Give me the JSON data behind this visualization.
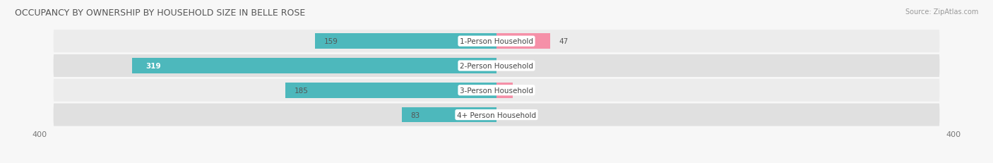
{
  "title": "OCCUPANCY BY OWNERSHIP BY HOUSEHOLD SIZE IN BELLE ROSE",
  "source": "Source: ZipAtlas.com",
  "categories": [
    "1-Person Household",
    "2-Person Household",
    "3-Person Household",
    "4+ Person Household"
  ],
  "owner_values": [
    159,
    319,
    185,
    83
  ],
  "renter_values": [
    47,
    0,
    14,
    0
  ],
  "owner_color": "#4db8bc",
  "renter_color": "#f590a8",
  "row_bg_color_light": "#ececec",
  "row_bg_color_dark": "#e0e0e0",
  "label_bg_color": "#ffffff",
  "axis_max": 400,
  "title_fontsize": 9,
  "source_fontsize": 7,
  "label_fontsize": 7.5,
  "tick_fontsize": 8,
  "fig_bg": "#f7f7f7"
}
